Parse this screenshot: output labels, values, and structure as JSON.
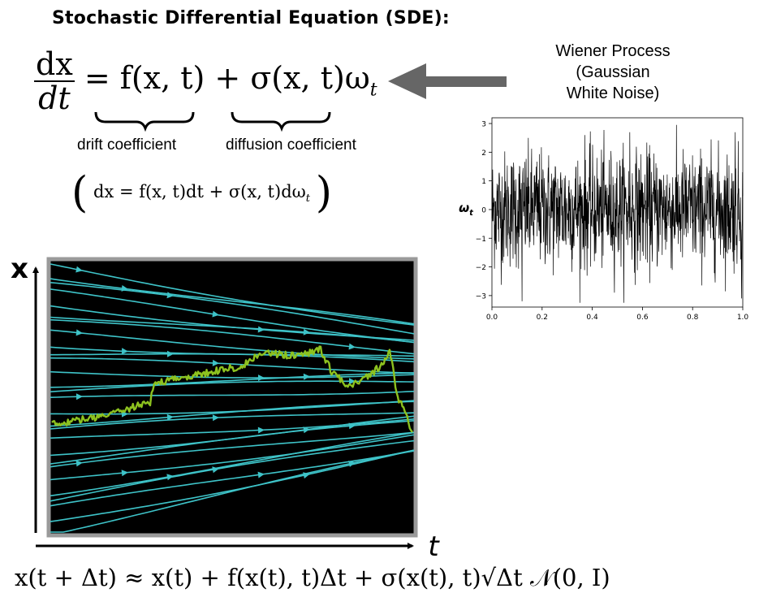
{
  "title": "Stochastic Differential Equation (SDE):",
  "equation_main": {
    "lhs_num": "dx",
    "lhs_den": "dt",
    "rhs": "= f(x, t) + σ(x, t)ω",
    "rhs_sub": "t"
  },
  "labels": {
    "drift": "drift coefficient",
    "diffusion": "diffusion coefficient"
  },
  "equation_differential": {
    "open_paren": "(",
    "body": "dx = f(x, t)dt + σ(x, t)dω",
    "sub": "t",
    "close_paren": ")"
  },
  "wiener": {
    "line1": "Wiener Process",
    "line2": "(Gaussian",
    "line3": "White Noise)"
  },
  "flow_plot": {
    "y_axis_label": "x",
    "x_axis_label": "t",
    "stream_color": "#3ec3c8",
    "path_color": "#8dc21f",
    "background": "#000000"
  },
  "equation_bottom": {
    "text": "x(t + Δt) ≈ x(t) + f(x(t), t)Δt + σ(x(t), t)√Δt 𝒩(0, I)"
  },
  "chart_data": {
    "type": "line",
    "title": "",
    "xlabel": "",
    "ylabel": "ω_t",
    "xlim": [
      0.0,
      1.0
    ],
    "ylim": [
      -3.4,
      3.2
    ],
    "x_ticks": [
      "0.0",
      "0.2",
      "0.4",
      "0.6",
      "0.8",
      "1.0"
    ],
    "y_ticks": [
      "3",
      "2",
      "1",
      "0",
      "−1",
      "−2",
      "−3"
    ],
    "series": [
      {
        "n": 1000,
        "color": "#000000",
        "distribution": "gaussian",
        "mean": 0.0,
        "std": 1.0,
        "notable_points": [
          [
            0.12,
            -3.2
          ],
          [
            0.97,
            2.7
          ],
          [
            0.995,
            -3.1
          ],
          [
            0.37,
            2.6
          ],
          [
            0.55,
            2.7
          ]
        ]
      }
    ]
  }
}
